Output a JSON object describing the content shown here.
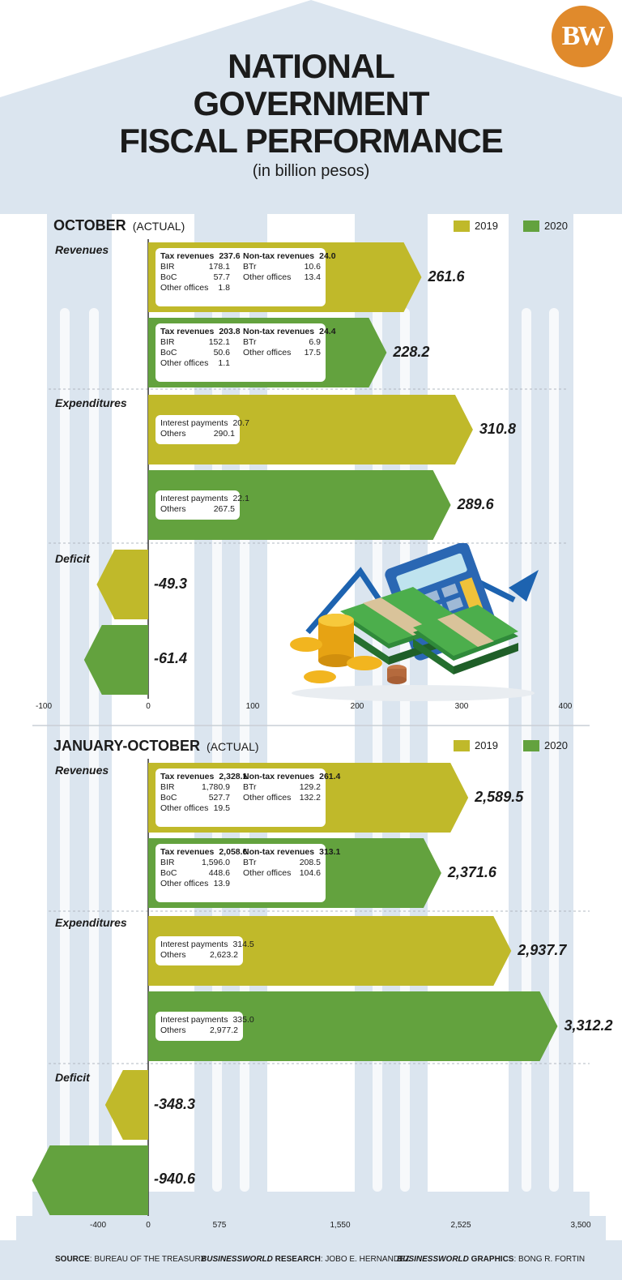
{
  "header": {
    "logo_text": "BW",
    "title_lines": [
      "NATIONAL",
      "GOVERNMENT",
      "FISCAL PERFORMANCE"
    ],
    "subtitle": "(in billion pesos)"
  },
  "colors": {
    "y2019": "#c0b92a",
    "y2020": "#63a23e",
    "bg_light": "#dbe5ef"
  },
  "legend": {
    "y2019": "2019",
    "y2020": "2020"
  },
  "chart_data": [
    {
      "type": "bar",
      "title": "OCTOBER",
      "subtitle": "(ACTUAL)",
      "xticks": [
        "-100",
        "0",
        "100",
        "200",
        "300",
        "400"
      ],
      "xlim": [
        -100,
        400
      ],
      "categories": [
        "Revenues",
        "Expenditures",
        "Deficit"
      ],
      "series": [
        {
          "name": "2019",
          "values": [
            261.6,
            310.8,
            -49.3
          ]
        },
        {
          "name": "2020",
          "values": [
            228.2,
            289.6,
            -61.4
          ]
        }
      ],
      "labels": {
        "rev2019": "261.6",
        "rev2020": "228.2",
        "exp2019": "310.8",
        "exp2020": "289.6",
        "def2019": "-49.3",
        "def2020": "-61.4"
      },
      "breakdown": {
        "rev2019": {
          "tax": [
            "Tax revenues",
            "237.6"
          ],
          "bir": [
            "BIR",
            "178.1"
          ],
          "boc": [
            "BoC",
            "57.7"
          ],
          "oth": [
            "Other offices",
            "1.8"
          ],
          "nontax": [
            "Non-tax revenues",
            "24.0"
          ],
          "btr": [
            "BTr",
            "10.6"
          ],
          "noth": [
            "Other offices",
            "13.4"
          ]
        },
        "rev2020": {
          "tax": [
            "Tax revenues",
            "203.8"
          ],
          "bir": [
            "BIR",
            "152.1"
          ],
          "boc": [
            "BoC",
            "50.6"
          ],
          "oth": [
            "Other offices",
            "1.1"
          ],
          "nontax": [
            "Non-tax revenues",
            "24.4"
          ],
          "btr": [
            "BTr",
            "6.9"
          ],
          "noth": [
            "Other offices",
            "17.5"
          ]
        },
        "exp2019": {
          "int": [
            "Interest payments",
            "20.7"
          ],
          "oth": [
            "Others",
            "290.1"
          ]
        },
        "exp2020": {
          "int": [
            "Interest payments",
            "22.1"
          ],
          "oth": [
            "Others",
            "267.5"
          ]
        }
      }
    },
    {
      "type": "bar",
      "title": "JANUARY-OCTOBER",
      "subtitle": "(ACTUAL)",
      "xticks": [
        "-400",
        "0",
        "575",
        "1,550",
        "2,525",
        "3,500"
      ],
      "xlim": [
        -1000,
        3500
      ],
      "categories": [
        "Revenues",
        "Expenditures",
        "Deficit"
      ],
      "series": [
        {
          "name": "2019",
          "values": [
            2589.5,
            2937.7,
            -348.3
          ]
        },
        {
          "name": "2020",
          "values": [
            2371.6,
            3312.2,
            -940.6
          ]
        }
      ],
      "labels": {
        "rev2019": "2,589.5",
        "rev2020": "2,371.6",
        "exp2019": "2,937.7",
        "exp2020": "3,312.2",
        "def2019": "-348.3",
        "def2020": "-940.6"
      },
      "breakdown": {
        "rev2019": {
          "tax": [
            "Tax revenues",
            "2,328.1"
          ],
          "bir": [
            "BIR",
            "1,780.9"
          ],
          "boc": [
            "BoC",
            "527.7"
          ],
          "oth": [
            "Other offices",
            "19.5"
          ],
          "nontax": [
            "Non-tax revenues",
            "261.4"
          ],
          "btr": [
            "BTr",
            "129.2"
          ],
          "noth": [
            "Other offices",
            "132.2"
          ]
        },
        "rev2020": {
          "tax": [
            "Tax revenues",
            "2,058.6"
          ],
          "bir": [
            "BIR",
            "1,596.0"
          ],
          "boc": [
            "BoC",
            "448.6"
          ],
          "oth": [
            "Other offices",
            "13.9"
          ],
          "nontax": [
            "Non-tax revenues",
            "313.1"
          ],
          "btr": [
            "BTr",
            "208.5"
          ],
          "noth": [
            "Other offices",
            "104.6"
          ]
        },
        "exp2019": {
          "int": [
            "Interest payments",
            "314.5"
          ],
          "oth": [
            "Others",
            "2,623.2"
          ]
        },
        "exp2020": {
          "int": [
            "Interest payments",
            "335.0"
          ],
          "oth": [
            "Others",
            "2,977.2"
          ]
        }
      }
    }
  ],
  "footer": {
    "source_label": "SOURCE",
    "source_text": ": BUREAU OF THE TREASURY",
    "research_label_italic": "BUSINESSWORLD",
    "research_label": " RESEARCH",
    "research_text": ": JOBO E. HERNANDEZ",
    "graphics_label_italic": "BUSINESSWORLD",
    "graphics_label": " GRAPHICS",
    "graphics_text": ": BONG R. FORTIN"
  }
}
